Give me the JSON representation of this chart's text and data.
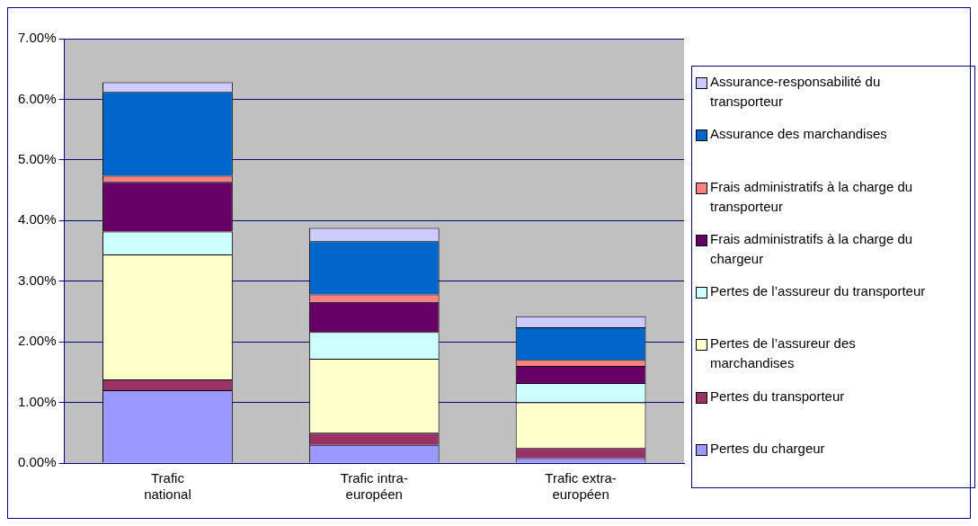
{
  "chart_data": {
    "type": "bar",
    "stacked": true,
    "categories": [
      "Trafic national",
      "Trafic intra-européen",
      "Trafic extra-européen"
    ],
    "series": [
      {
        "name": "Pertes du chargeur",
        "color": "#9999ff",
        "values": [
          1.2,
          0.3,
          0.08
        ]
      },
      {
        "name": "Pertes du transporteur",
        "color": "#993366",
        "values": [
          0.18,
          0.2,
          0.17
        ]
      },
      {
        "name": "Pertes de l’assureur des marchandises",
        "color": "#ffffcc",
        "values": [
          2.06,
          1.22,
          0.75
        ]
      },
      {
        "name": "Pertes de l’assureur du transporteur",
        "color": "#ccffff",
        "values": [
          0.38,
          0.44,
          0.32
        ]
      },
      {
        "name": "Frais administratifs à la charge du chargeur",
        "color": "#660066",
        "values": [
          0.82,
          0.5,
          0.28
        ]
      },
      {
        "name": "Frais administratifs à la charge du transporteur",
        "color": "#ff8080",
        "values": [
          0.1,
          0.12,
          0.1
        ]
      },
      {
        "name": "Assurance des marchandises",
        "color": "#0066cc",
        "values": [
          1.38,
          0.88,
          0.54
        ]
      },
      {
        "name": "Assurance-responsabilité du transporteur",
        "color": "#ccccff",
        "values": [
          0.16,
          0.22,
          0.18
        ]
      }
    ],
    "ylim": [
      0,
      7
    ],
    "yticks": [
      {
        "value": 0,
        "label": "0.00%"
      },
      {
        "value": 1,
        "label": "1.00%"
      },
      {
        "value": 2,
        "label": "2.00%"
      },
      {
        "value": 3,
        "label": "3.00%"
      },
      {
        "value": 4,
        "label": "4.00%"
      },
      {
        "value": 5,
        "label": "5.00%"
      },
      {
        "value": 6,
        "label": "6.00%"
      },
      {
        "value": 7,
        "label": "7.00%"
      }
    ],
    "grid": "y",
    "legend": "right"
  }
}
